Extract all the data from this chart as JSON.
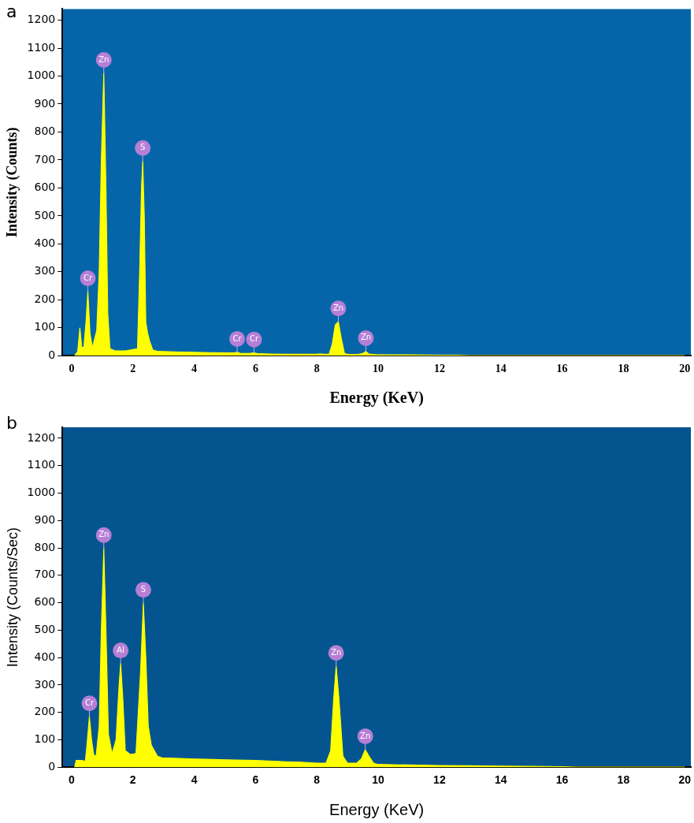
{
  "chart_data": [
    {
      "type": "area",
      "title": "a",
      "xlabel": "Energy (KeV)",
      "ylabel": "Intensity (Counts)",
      "xlim": [
        -0.3,
        20.2
      ],
      "ylim": [
        0,
        1240
      ],
      "xticks": [
        0,
        2,
        4,
        6,
        8,
        10,
        12,
        14,
        16,
        18,
        20
      ],
      "yticks": [
        0,
        100,
        200,
        300,
        400,
        500,
        600,
        700,
        800,
        900,
        1000,
        1100,
        1200
      ],
      "grid": false,
      "legend": false,
      "x": [
        0.1,
        0.2,
        0.27,
        0.33,
        0.4,
        0.47,
        0.53,
        0.6,
        0.68,
        0.75,
        0.82,
        0.9,
        0.97,
        1.05,
        1.12,
        1.18,
        1.25,
        1.4,
        1.6,
        1.8,
        2.0,
        2.15,
        2.22,
        2.28,
        2.32,
        2.37,
        2.42,
        2.48,
        2.55,
        2.65,
        2.8,
        3.0,
        3.5,
        4.0,
        4.5,
        5.0,
        5.3,
        5.4,
        5.5,
        5.8,
        5.95,
        6.1,
        6.5,
        7.0,
        7.5,
        8.0,
        8.1,
        8.2,
        8.4,
        8.5,
        8.6,
        8.7,
        8.8,
        8.9,
        9.0,
        9.3,
        9.5,
        9.6,
        9.7,
        9.9,
        10.5,
        11,
        12,
        12.5,
        13,
        14,
        16,
        18,
        20
      ],
      "series": [
        {
          "color": "#ffff00",
          "values": [
            0,
            15,
            99,
            30,
            30,
            120,
            229,
            80,
            28,
            60,
            90,
            300,
            700,
            1010,
            600,
            150,
            25,
            18,
            17,
            18,
            22,
            25,
            300,
            600,
            695,
            500,
            120,
            80,
            50,
            20,
            16,
            15,
            13,
            12,
            11,
            10,
            10,
            12,
            9,
            8,
            10,
            7,
            6,
            5,
            5,
            5,
            7,
            5,
            6,
            40,
            110,
            121,
            60,
            8,
            5,
            4,
            8,
            15,
            6,
            4,
            3,
            3,
            2,
            2,
            0,
            0,
            0,
            0,
            0
          ]
        }
      ],
      "annotations": [
        {
          "text": "Cr",
          "x": 0.53,
          "y": 229
        },
        {
          "text": "Zn",
          "x": 1.05,
          "y": 1010
        },
        {
          "text": "S",
          "x": 2.32,
          "y": 695
        },
        {
          "text": "Cr",
          "x": 5.4,
          "y": 12
        },
        {
          "text": "Cr",
          "x": 5.95,
          "y": 10
        },
        {
          "text": "Zn",
          "x": 8.7,
          "y": 121
        },
        {
          "text": "Zn",
          "x": 9.6,
          "y": 15
        }
      ]
    },
    {
      "type": "area",
      "title": "b",
      "xlabel": "Energy (KeV)",
      "ylabel": "Intensity (Counts/Sec)",
      "xlim": [
        -0.3,
        20.2
      ],
      "ylim": [
        0,
        1240
      ],
      "xticks": [
        0,
        2,
        4,
        6,
        8,
        10,
        12,
        14,
        16,
        18,
        20
      ],
      "yticks": [
        0,
        100,
        200,
        300,
        400,
        500,
        600,
        700,
        800,
        900,
        1000,
        1100,
        1200
      ],
      "grid": false,
      "legend": false,
      "x": [
        0.1,
        0.15,
        0.3,
        0.45,
        0.5,
        0.58,
        0.65,
        0.72,
        0.8,
        0.9,
        0.97,
        1.05,
        1.12,
        1.2,
        1.32,
        1.45,
        1.55,
        1.6,
        1.67,
        1.75,
        1.92,
        2.1,
        2.25,
        2.34,
        2.42,
        2.5,
        2.6,
        2.8,
        2.95,
        3.5,
        4,
        5,
        6,
        7,
        7.5,
        8,
        8.3,
        8.45,
        8.55,
        8.63,
        8.72,
        8.85,
        9.0,
        9.3,
        9.45,
        9.58,
        9.7,
        9.85,
        10,
        11,
        12,
        13,
        14,
        15,
        16,
        16.5,
        18,
        20
      ],
      "series": [
        {
          "color": "#ffff00",
          "values": [
            0,
            25,
            25,
            22,
            80,
            184,
            100,
            45,
            40,
            150,
            500,
            798,
            500,
            120,
            49,
            100,
            300,
            377,
            250,
            60,
            46,
            50,
            350,
            598,
            400,
            150,
            80,
            40,
            34,
            32,
            30,
            27,
            25,
            20,
            18,
            15,
            15,
            60,
            250,
            368,
            250,
            40,
            15,
            15,
            30,
            64,
            40,
            15,
            10,
            8,
            6,
            5,
            4,
            3,
            2,
            0,
            0,
            0
          ]
        }
      ],
      "annotations": [
        {
          "text": "Cr",
          "x": 0.58,
          "y": 184
        },
        {
          "text": "Zn",
          "x": 1.05,
          "y": 798
        },
        {
          "text": "Al",
          "x": 1.6,
          "y": 377
        },
        {
          "text": "S",
          "x": 2.34,
          "y": 598
        },
        {
          "text": "Zn",
          "x": 8.63,
          "y": 368
        },
        {
          "text": "Zn",
          "x": 9.58,
          "y": 64
        }
      ]
    }
  ]
}
